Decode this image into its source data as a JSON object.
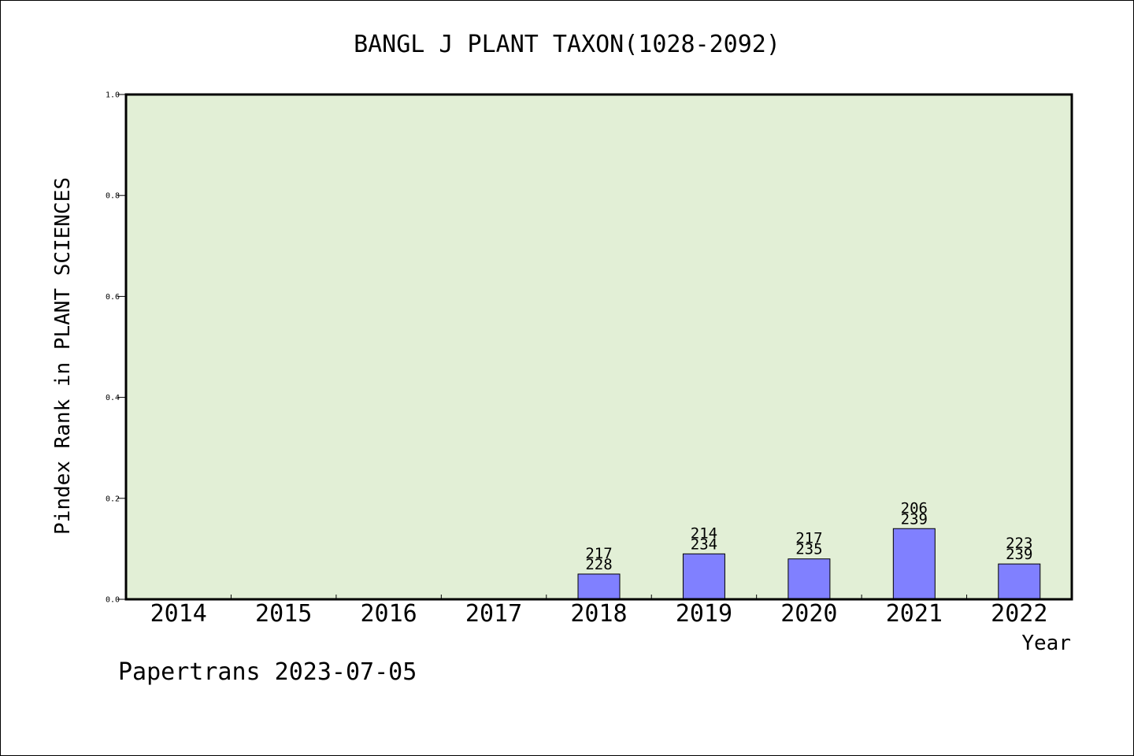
{
  "chart_data": {
    "type": "bar",
    "title": "BANGL J PLANT TAXON(1028-2092)",
    "xlabel": "Year",
    "ylabel": "Pindex Rank in PLANT SCIENCES",
    "ylim": [
      0,
      1.0
    ],
    "yticks": [
      "0.0",
      "0.2",
      "0.4",
      "0.6",
      "0.8",
      "1.0"
    ],
    "categories": [
      "2014",
      "2015",
      "2016",
      "2017",
      "2018",
      "2019",
      "2020",
      "2021",
      "2022"
    ],
    "values": [
      null,
      null,
      null,
      null,
      0.05,
      0.09,
      0.08,
      0.14,
      0.07
    ],
    "labels_top": [
      "",
      "",
      "",
      "",
      "217",
      "214",
      "217",
      "206",
      "223"
    ],
    "labels_bottom": [
      "",
      "",
      "",
      "",
      "228",
      "234",
      "235",
      "239",
      "239"
    ],
    "grid": false,
    "bar_color": "#8080ff",
    "plot_background": "#e2efd6"
  },
  "footer": "Papertrans 2023-07-05"
}
